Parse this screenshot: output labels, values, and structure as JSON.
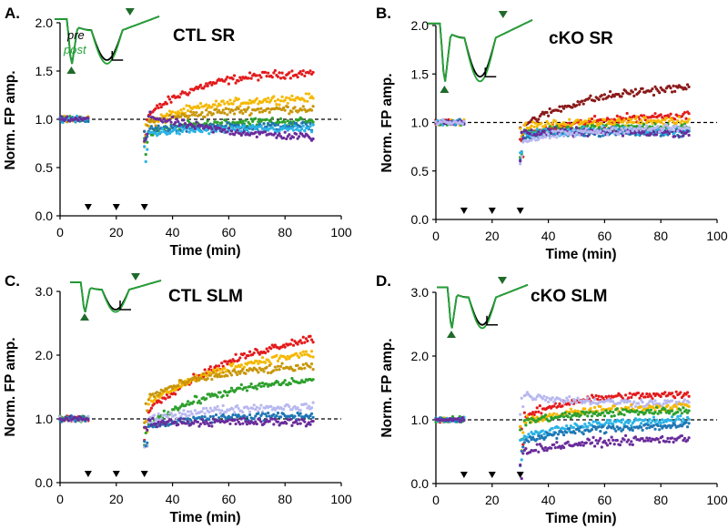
{
  "figure": {
    "colors": {
      "axis": "#000000",
      "trace_pre": "#000000",
      "trace_post": "#22a336",
      "arrowhead": "#1f6b2b",
      "series": [
        "#e41a1c",
        "#f5b800",
        "#c8960a",
        "#2ca02c",
        "#1f77b4",
        "#2bb3e6",
        "#6a2c9b",
        "#b8b8f0",
        "#8b1a1a"
      ]
    },
    "legend": {
      "pre": "pre",
      "post": "post"
    }
  },
  "chart_data": [
    {
      "type": "scatter",
      "panel_label": "A.",
      "title": "CTL SR",
      "xlabel": "Time (min)",
      "ylabel": "Norm. FP amp.",
      "xlim": [
        0,
        100
      ],
      "ylim": [
        0,
        2
      ],
      "xticks": [
        0,
        20,
        40,
        60,
        80,
        100
      ],
      "yticks": [
        "0.0",
        "0.5",
        "1.0",
        "1.5",
        "2.0"
      ],
      "baseline": 1.0,
      "markers_x": [
        10,
        20,
        30
      ],
      "legend_inset": true,
      "series": [
        {
          "name": "red",
          "color": "#e41a1c",
          "y0": 1.0,
          "yend": 1.5,
          "tau": 18
        },
        {
          "name": "orange",
          "color": "#f5b800",
          "y0": 0.95,
          "yend": 1.24,
          "tau": 22
        },
        {
          "name": "tan",
          "color": "#c8960a",
          "y0": 0.95,
          "yend": 1.12,
          "tau": 20
        },
        {
          "name": "green",
          "color": "#2ca02c",
          "y0": 0.82,
          "yend": 0.98,
          "tau": 12
        },
        {
          "name": "blue",
          "color": "#1f77b4",
          "y0": 0.88,
          "yend": 0.93,
          "tau": 15
        },
        {
          "name": "cyan",
          "color": "#2bb3e6",
          "y0": 0.85,
          "yend": 0.9,
          "tau": 15
        },
        {
          "name": "purple",
          "color": "#6a2c9b",
          "y0": 1.05,
          "yend": 0.78,
          "tau": 30
        }
      ]
    },
    {
      "type": "scatter",
      "panel_label": "B.",
      "title": "cKO SR",
      "xlabel": "Time (min)",
      "ylabel": "Norm. FP amp.",
      "xlim": [
        0,
        100
      ],
      "ylim": [
        0,
        2
      ],
      "xticks": [
        0,
        20,
        40,
        60,
        80,
        100
      ],
      "yticks": [
        "0.0",
        "0.5",
        "1.0",
        "1.5",
        "2.0"
      ],
      "baseline": 1.0,
      "markers_x": [
        10,
        20,
        30
      ],
      "legend_inset": false,
      "series": [
        {
          "name": "dark red",
          "color": "#8b1a1a",
          "y0": 0.95,
          "yend": 1.4,
          "tau": 25
        },
        {
          "name": "red",
          "color": "#e41a1c",
          "y0": 0.85,
          "yend": 1.1,
          "tau": 25
        },
        {
          "name": "orange",
          "color": "#f5b800",
          "y0": 0.95,
          "yend": 1.02,
          "tau": 20
        },
        {
          "name": "green",
          "color": "#2ca02c",
          "y0": 0.9,
          "yend": 0.95,
          "tau": 15
        },
        {
          "name": "blue",
          "color": "#1f77b4",
          "y0": 0.85,
          "yend": 0.9,
          "tau": 15
        },
        {
          "name": "cyan",
          "color": "#2bb3e6",
          "y0": 0.88,
          "yend": 0.92,
          "tau": 15
        },
        {
          "name": "purple",
          "color": "#6a2c9b",
          "y0": 0.9,
          "yend": 0.9,
          "tau": 15
        },
        {
          "name": "lavender",
          "color": "#b8b8f0",
          "y0": 0.8,
          "yend": 0.95,
          "tau": 20
        }
      ]
    },
    {
      "type": "scatter",
      "panel_label": "C.",
      "title": "CTL SLM",
      "xlabel": "Time (min)",
      "ylabel": "Norm. FP amp.",
      "xlim": [
        0,
        100
      ],
      "ylim": [
        0,
        3
      ],
      "xticks": [
        0,
        20,
        40,
        60,
        80,
        100
      ],
      "yticks": [
        "0.0",
        "1.0",
        "2.0",
        "3.0"
      ],
      "baseline": 1.0,
      "markers_x": [
        10,
        20,
        30
      ],
      "legend_inset": false,
      "series": [
        {
          "name": "red",
          "color": "#e41a1c",
          "y0": 1.1,
          "yend": 2.6,
          "tau": 40
        },
        {
          "name": "orange",
          "color": "#f5b800",
          "y0": 1.2,
          "yend": 2.15,
          "tau": 30
        },
        {
          "name": "tan",
          "color": "#c8960a",
          "y0": 1.3,
          "yend": 1.85,
          "tau": 22
        },
        {
          "name": "green",
          "color": "#2ca02c",
          "y0": 0.9,
          "yend": 1.7,
          "tau": 28
        },
        {
          "name": "lavender",
          "color": "#b8b8f0",
          "y0": 0.95,
          "yend": 1.2,
          "tau": 18
        },
        {
          "name": "blue",
          "color": "#1f77b4",
          "y0": 0.85,
          "yend": 1.05,
          "tau": 15
        },
        {
          "name": "purple",
          "color": "#6a2c9b",
          "y0": 0.95,
          "yend": 0.95,
          "tau": 15
        }
      ]
    },
    {
      "type": "scatter",
      "panel_label": "D.",
      "title": "cKO SLM",
      "xlabel": "Time (min)",
      "ylabel": "Norm. FP amp.",
      "xlim": [
        0,
        100
      ],
      "ylim": [
        0,
        3
      ],
      "xticks": [
        0,
        20,
        40,
        60,
        80,
        100
      ],
      "yticks": [
        "0.0",
        "1.0",
        "2.0",
        "3.0"
      ],
      "baseline": 1.0,
      "markers_x": [
        10,
        20,
        30
      ],
      "legend_inset": false,
      "series": [
        {
          "name": "red",
          "color": "#e41a1c",
          "y0": 1.0,
          "yend": 1.4,
          "tau": 15
        },
        {
          "name": "lavender",
          "color": "#b8b8f0",
          "y0": 1.4,
          "yend": 1.25,
          "tau": 20
        },
        {
          "name": "orange",
          "color": "#f5b800",
          "y0": 0.95,
          "yend": 1.22,
          "tau": 20
        },
        {
          "name": "green",
          "color": "#2ca02c",
          "y0": 0.95,
          "yend": 1.15,
          "tau": 20
        },
        {
          "name": "cyan",
          "color": "#2bb3e6",
          "y0": 0.7,
          "yend": 1.02,
          "tau": 20
        },
        {
          "name": "blue",
          "color": "#1f77b4",
          "y0": 0.65,
          "yend": 0.92,
          "tau": 20
        },
        {
          "name": "purple",
          "color": "#6a2c9b",
          "y0": 0.5,
          "yend": 0.72,
          "tau": 25
        }
      ]
    }
  ]
}
